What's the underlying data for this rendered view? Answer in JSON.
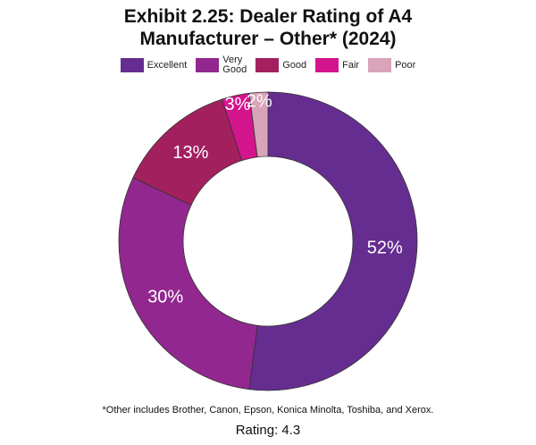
{
  "chart_data": {
    "type": "pie",
    "donut": true,
    "title": "Exhibit 2.25: Dealer Rating of A4 Manufacturer – Other* (2024)",
    "categories": [
      "Excellent",
      "Very Good",
      "Good",
      "Fair",
      "Poor"
    ],
    "values": [
      52,
      30,
      13,
      3,
      2
    ],
    "value_labels": [
      "52%",
      "30%",
      "13%",
      "3%",
      "2%"
    ],
    "colors": [
      "#662d91",
      "#92278f",
      "#a3205f",
      "#d4148c",
      "#d9a3b9"
    ],
    "footnote": "*Other includes Brother, Canon, Epson, Konica Minolta, Toshiba, and Xerox.",
    "rating": "Rating: 4.3"
  }
}
